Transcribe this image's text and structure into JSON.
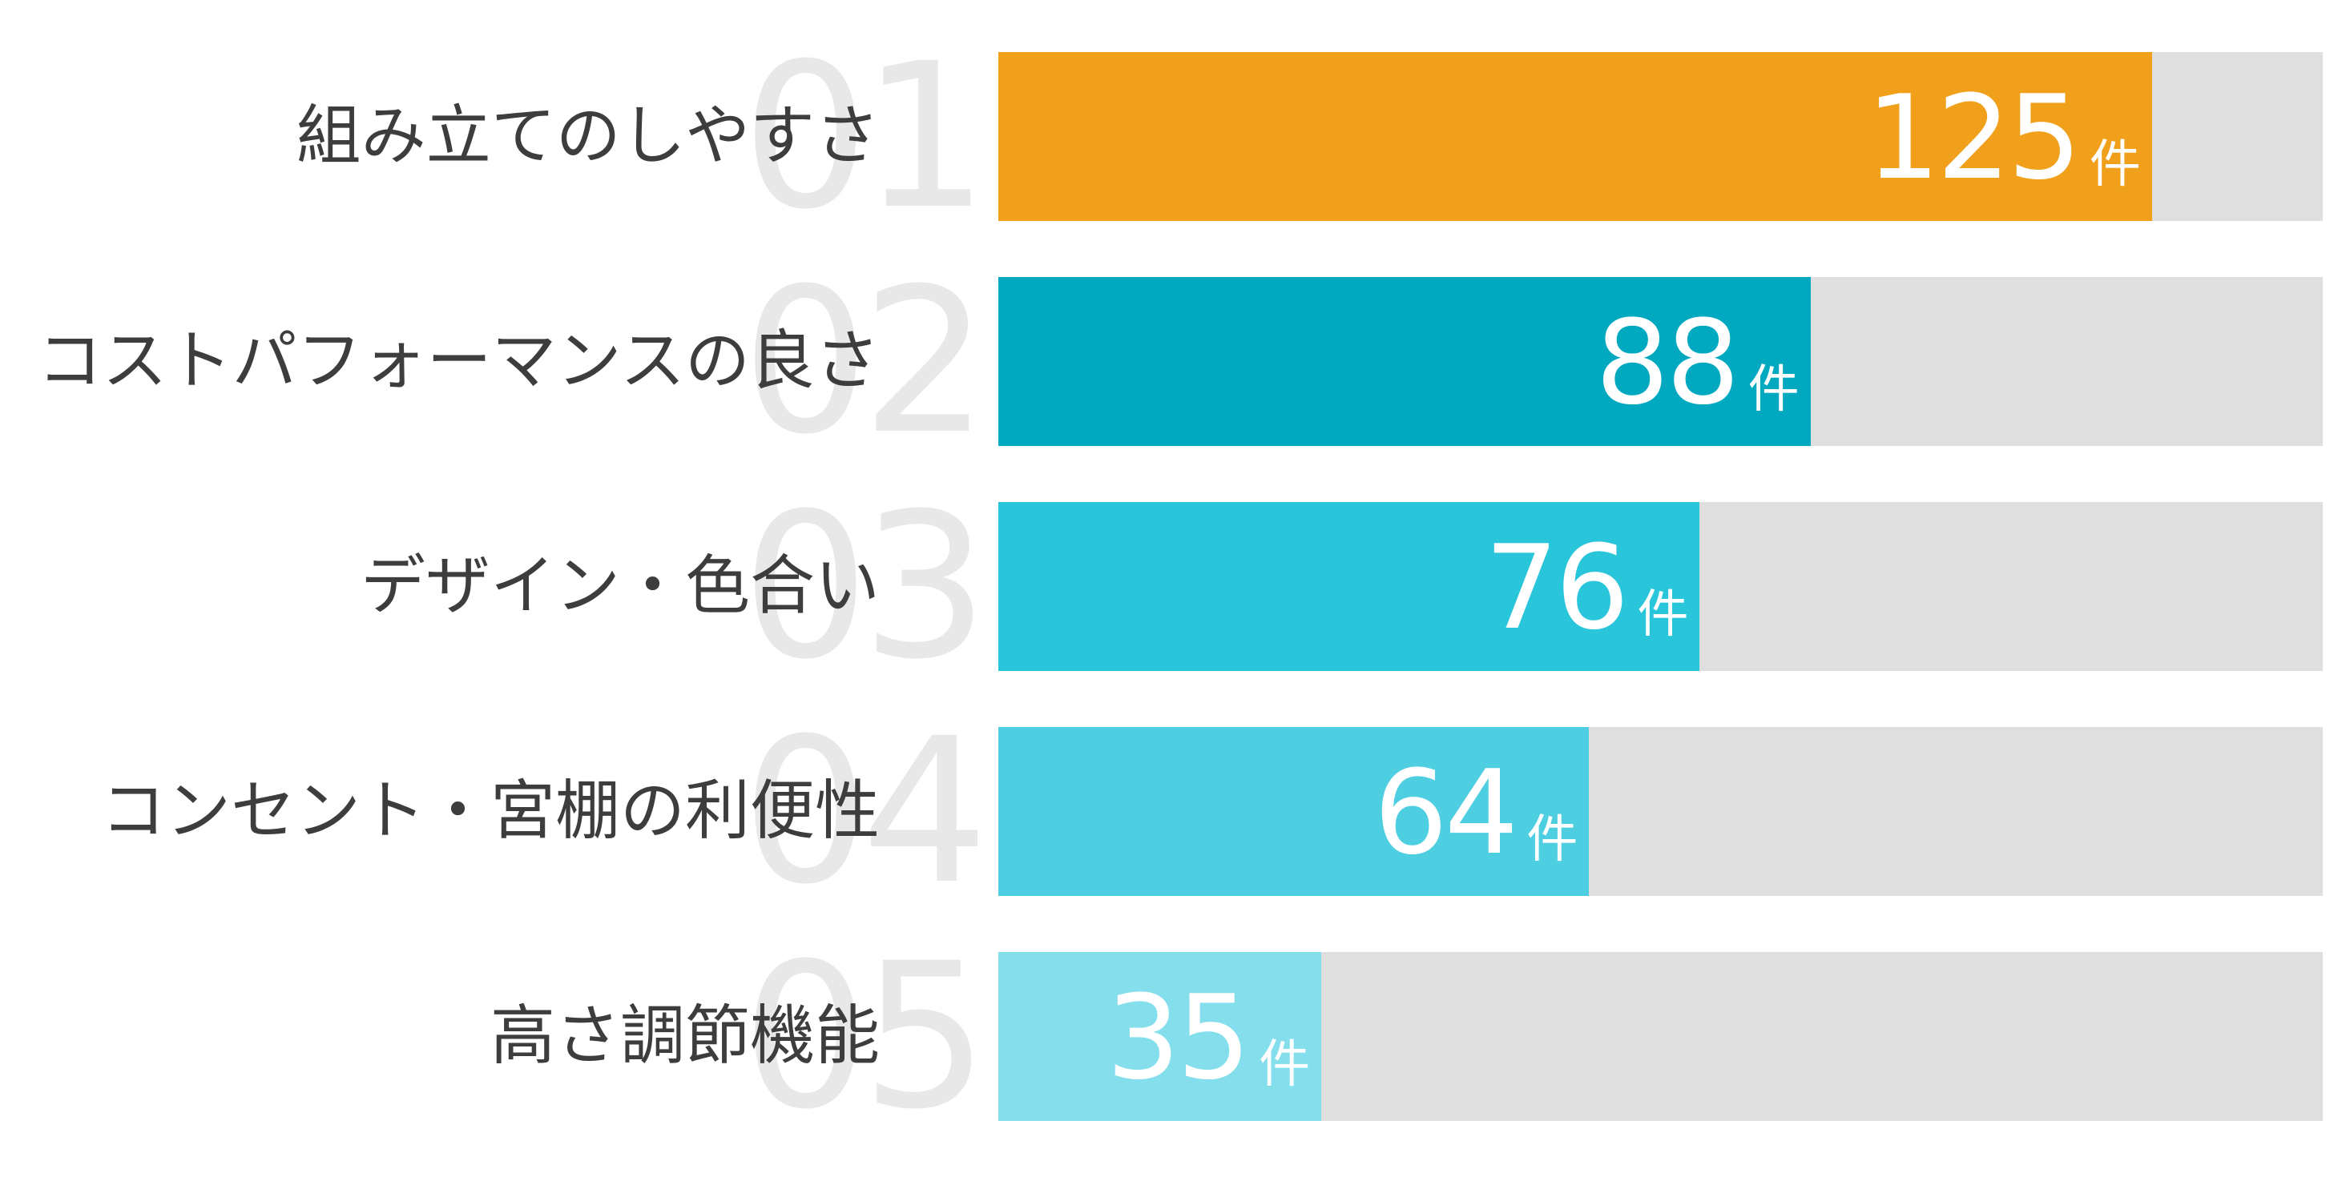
{
  "page": {
    "background": "#FFFFFF"
  },
  "chart_data": {
    "type": "bar",
    "orientation": "horizontal",
    "title": "",
    "unit": "件",
    "categories": [
      "組み立てのしやすさ",
      "コストパフォーマンスの良さ",
      "デザイン・色合い",
      "コンセント・宮棚の利便性",
      "高さ調節機能"
    ],
    "values": [
      125,
      88,
      76,
      64,
      35
    ],
    "rank_labels": [
      "01",
      "02",
      "03",
      "04",
      "05"
    ],
    "bar_colors": [
      "#F1A01C",
      "#00A9C0",
      "#29C5DB",
      "#4DCFE1",
      "#85DEEC"
    ],
    "track_color": "#DFDFDF",
    "rank_number_color": "#E8E8E8",
    "category_label_color": "#3D3D3D",
    "value_label_color": "#FFFFFF",
    "xlim": [
      0,
      143.5
    ],
    "grid": false,
    "legend": false,
    "items": [
      {
        "rank": "01",
        "label": "組み立てのしやすさ",
        "value": 125,
        "color": "#F1A01C"
      },
      {
        "rank": "02",
        "label": "コストパフォーマンスの良さ",
        "value": 88,
        "color": "#00A9C0"
      },
      {
        "rank": "03",
        "label": "デザイン・色合い",
        "value": 76,
        "color": "#29C5DB"
      },
      {
        "rank": "04",
        "label": "コンセント・宮棚の利便性",
        "value": 64,
        "color": "#4DCFE1"
      },
      {
        "rank": "05",
        "label": "高さ調節機能",
        "value": 35,
        "color": "#85DEEC"
      }
    ]
  }
}
